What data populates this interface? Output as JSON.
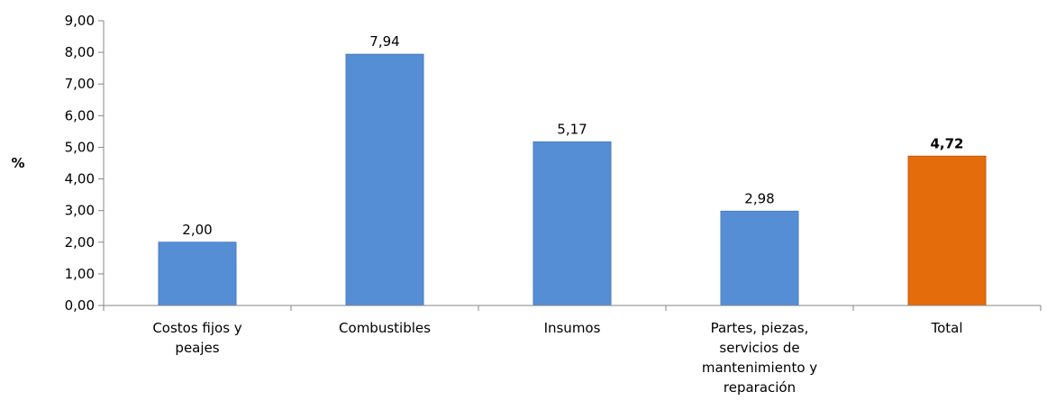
{
  "chart_data": {
    "type": "bar",
    "title": "",
    "ylabel": "%",
    "xlabel": "",
    "ylim": [
      0,
      9
    ],
    "ytick_step": 1,
    "ytick_format": "comma-2",
    "grid": false,
    "categories": [
      "Costos fijos y peajes",
      "Combustibles",
      "Insumos",
      "Partes, piezas, servicios de mantenimiento y reparación",
      "Total"
    ],
    "category_label_lines": [
      [
        "Costos fijos y",
        "peajes"
      ],
      [
        "Combustibles"
      ],
      [
        "Insumos"
      ],
      [
        "Partes, piezas,",
        "servicios de",
        "mantenimiento y",
        "reparación"
      ],
      [
        "Total"
      ]
    ],
    "values": [
      2.0,
      7.94,
      5.17,
      2.98,
      4.72
    ],
    "data_labels": [
      "2,00",
      "7,94",
      "5,17",
      "2,98",
      "4,72"
    ],
    "highlight_index": 4,
    "colors": {
      "bar": "#558ED5",
      "bar_stroke": "#4A7EBB",
      "highlight": "#E46C0A",
      "highlight_stroke": "#C55A11",
      "axis": "#868686"
    }
  }
}
